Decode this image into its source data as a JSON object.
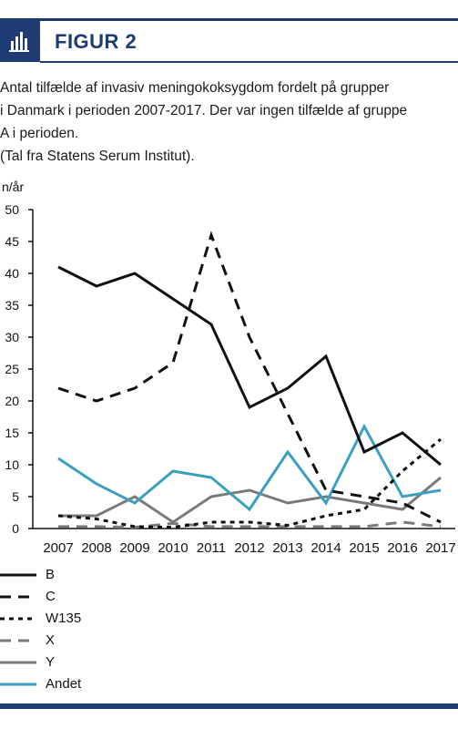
{
  "figure": {
    "label": "FIGUR 2",
    "caption_lines": [
      "Antal tilfælde af invasiv meningokoksygdom fordelt på grupper",
      "i Danmark i perioden 2007-2017. Der var ingen tilfælde af gruppe",
      "A i perioden.",
      "(Tal fra Statens Serum Institut)."
    ]
  },
  "colors": {
    "brand": "#1f3b73",
    "andet": "#3b9fc0",
    "grey": "#7a7a7a",
    "black": "#111111"
  },
  "chart_data": {
    "type": "line",
    "ylabel": "n/år",
    "xlabel": "",
    "ylim": [
      0,
      50
    ],
    "yticks": [
      "0",
      "5",
      "10",
      "15",
      "20",
      "25",
      "30",
      "35",
      "40",
      "45",
      "50"
    ],
    "x": [
      "2007",
      "2008",
      "2009",
      "2010",
      "2011",
      "2012",
      "2013",
      "2014",
      "2015",
      "2016",
      "2017"
    ],
    "grid": false,
    "legend_position": "bottom",
    "series": [
      {
        "name": "B",
        "values": [
          41,
          38,
          40,
          36,
          32,
          19,
          22,
          27,
          12,
          15,
          10
        ],
        "color": "#111111",
        "style": "solid"
      },
      {
        "name": "C",
        "values": [
          22,
          20,
          22,
          26,
          46,
          30,
          18,
          6,
          5,
          4,
          1
        ],
        "color": "#111111",
        "style": "dashed"
      },
      {
        "name": "W135",
        "values": [
          2,
          1.5,
          0.3,
          0.2,
          1,
          1,
          0.5,
          2,
          3,
          9,
          14
        ],
        "color": "#111111",
        "style": "dotted"
      },
      {
        "name": "X",
        "values": [
          0.3,
          0.3,
          0.2,
          0.8,
          0.3,
          0.3,
          0.3,
          0.3,
          0.3,
          1,
          0.3
        ],
        "color": "#7a7a7a",
        "style": "dashed"
      },
      {
        "name": "Y",
        "values": [
          2,
          2,
          5,
          1,
          5,
          6,
          4,
          5,
          4,
          3,
          8
        ],
        "color": "#7a7a7a",
        "style": "solid"
      },
      {
        "name": "Andet",
        "values": [
          11,
          7,
          4,
          9,
          8,
          3,
          12,
          4,
          16,
          5,
          6
        ],
        "color": "#3b9fc0",
        "style": "solid"
      }
    ]
  }
}
